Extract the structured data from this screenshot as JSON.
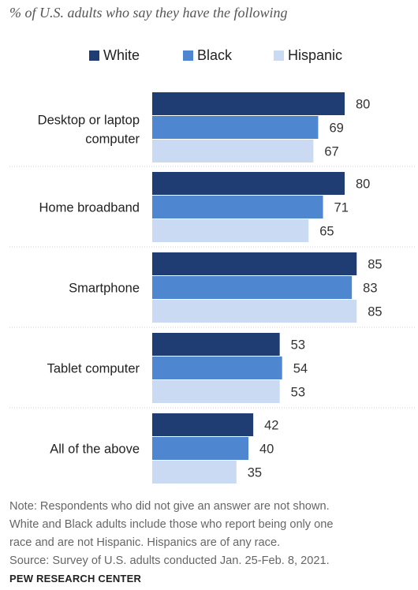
{
  "subtitle": "% of U.S. adults who say they have the following",
  "legend": [
    {
      "label": "White",
      "color": "#1f3d72"
    },
    {
      "label": "Black",
      "color": "#4f86d0"
    },
    {
      "label": "Hispanic",
      "color": "#c9daf2"
    }
  ],
  "chart_data": {
    "type": "bar",
    "orientation": "horizontal",
    "categories": [
      "Desktop or laptop computer",
      "Home broadband",
      "Smartphone",
      "Tablet computer",
      "All of the above"
    ],
    "series": [
      {
        "name": "White",
        "values": [
          80,
          80,
          85,
          53,
          42
        ]
      },
      {
        "name": "Black",
        "values": [
          69,
          71,
          83,
          54,
          40
        ]
      },
      {
        "name": "Hispanic",
        "values": [
          67,
          65,
          85,
          53,
          35
        ]
      }
    ],
    "xlim": [
      0,
      100
    ],
    "grid": false,
    "legend_position": "top",
    "data_labels": true
  },
  "note_lines": [
    "Note: Respondents who did not give an answer are not shown.",
    "White and Black adults include those who report being only one",
    "race and are not Hispanic. Hispanics are of any race.",
    "Source: Survey of U.S. adults conducted Jan. 25-Feb. 8, 2021."
  ],
  "brand": "PEW RESEARCH CENTER"
}
